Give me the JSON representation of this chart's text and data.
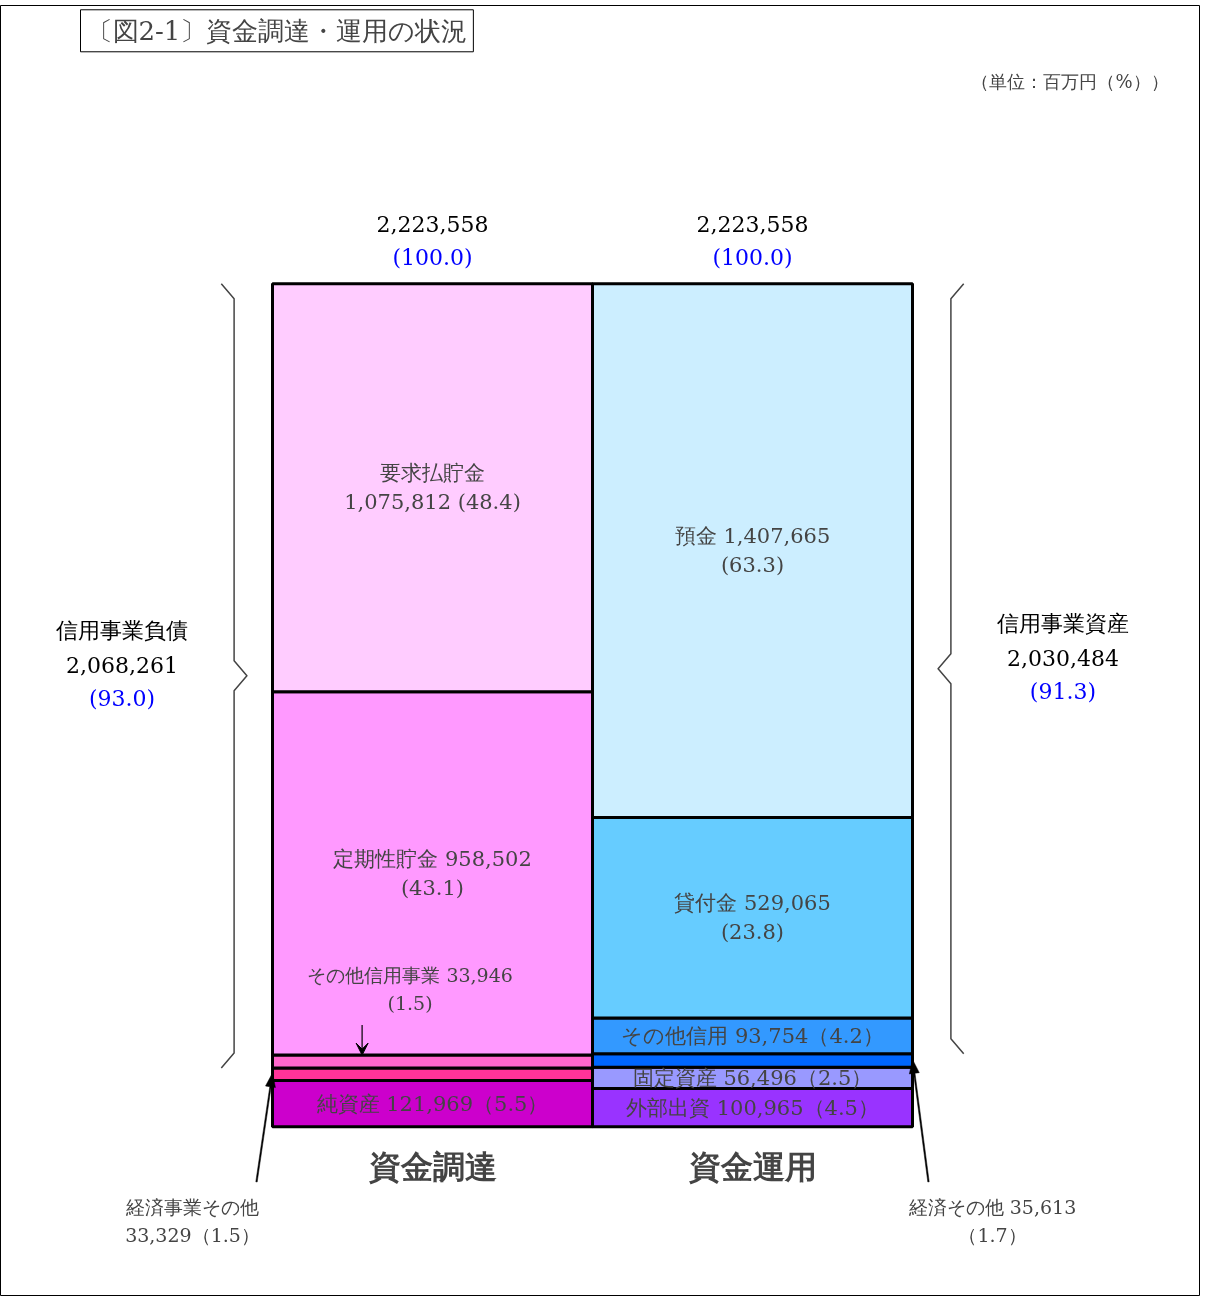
{
  "chart_data": {
    "type": "bar",
    "stacked": true,
    "title": "〔図2-1〕資金調達・運用の状況",
    "categories": [
      "資金調達",
      "資金運用"
    ],
    "series": [
      {
        "color": "#cc00cc",
        "values": [
          121969,
          null
        ],
        "value_labels": [
          "純資産 121,969（5.5）",
          null
        ]
      },
      {
        "color": "#ff3399",
        "values": [
          33329,
          null
        ],
        "value_labels": [
          null,
          null
        ]
      },
      {
        "color": "#ff66cc",
        "values": [
          33946,
          null
        ],
        "value_labels": [
          null,
          null
        ]
      },
      {
        "color": "#ff99ff",
        "values": [
          958502,
          null
        ],
        "value_labels": [
          "定期性貯金 958,502\n(43.1)",
          null
        ]
      },
      {
        "color": "#ffccff",
        "values": [
          1075812,
          null
        ],
        "value_labels": [
          "要求払貯金\n1,075,812 (48.4)",
          null
        ]
      },
      {
        "color": "#9933ff",
        "values": [
          null,
          100965
        ],
        "value_labels": [
          null,
          "外部出資 100,965（4.5）"
        ]
      },
      {
        "color": "#9999ff",
        "values": [
          null,
          56496
        ],
        "value_labels": [
          null,
          "固定資産 56,496（2.5）"
        ]
      },
      {
        "color": "#0066ff",
        "values": [
          null,
          35613
        ],
        "value_labels": [
          null,
          null
        ]
      },
      {
        "color": "#3399ff",
        "values": [
          null,
          93754
        ],
        "value_labels": [
          null,
          "その他信用 93,754（4.2）"
        ]
      },
      {
        "color": "#66ccff",
        "values": [
          null,
          529065
        ],
        "value_labels": [
          null,
          "貸付金 529,065\n(23.8)"
        ]
      },
      {
        "color": "#cceeff",
        "values": [
          null,
          1407665
        ],
        "value_labels": [
          null,
          "預金 1,407,665\n(63.3)"
        ]
      }
    ],
    "totals": [
      "2,223,558\n(100.0)",
      "2,223,558\n(100.0)"
    ],
    "annotations": [
      "（単位：百万円（%））",
      "信用事業負債\n2,068,261\n(93.0)",
      "信用事業資産\n2,030,484\n(91.3)",
      {
        "text": "その他信用事業 33,946\n(1.5)",
        "x": "資金調達",
        "y": 189244
      },
      "経済事業その他\n33,329（1.5）",
      "経済その他 35,613\n（1.7）"
    ],
    "tick_labels": "x",
    "grid": false
  }
}
